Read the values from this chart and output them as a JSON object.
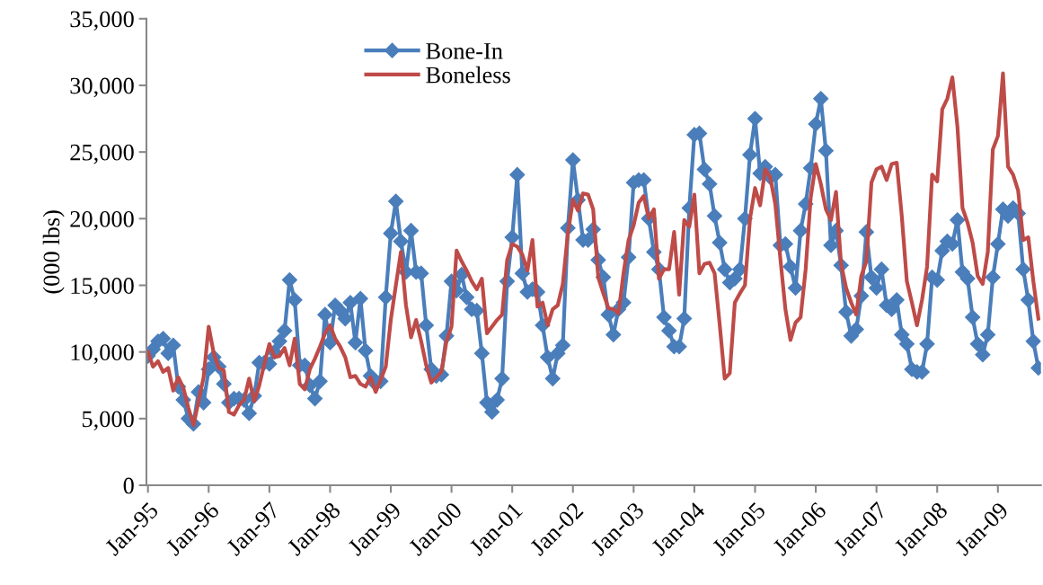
{
  "chart_data": {
    "type": "line",
    "ylabel": "(000 lbs)",
    "categories": [
      "Jan-95",
      null,
      null,
      null,
      null,
      null,
      null,
      null,
      null,
      null,
      null,
      null,
      "Jan-96",
      null,
      null,
      null,
      null,
      null,
      null,
      null,
      null,
      null,
      null,
      null,
      "Jan-97",
      null,
      null,
      null,
      null,
      null,
      null,
      null,
      null,
      null,
      null,
      null,
      "Jan-98",
      null,
      null,
      null,
      null,
      null,
      null,
      null,
      null,
      null,
      null,
      null,
      "Jan-99",
      null,
      null,
      null,
      null,
      null,
      null,
      null,
      null,
      null,
      null,
      null,
      "Jan-00",
      null,
      null,
      null,
      null,
      null,
      null,
      null,
      null,
      null,
      null,
      null,
      "Jan-01",
      null,
      null,
      null,
      null,
      null,
      null,
      null,
      null,
      null,
      null,
      null,
      "Jan-02",
      null,
      null,
      null,
      null,
      null,
      null,
      null,
      null,
      null,
      null,
      null,
      "Jan-03",
      null,
      null,
      null,
      null,
      null,
      null,
      null,
      null,
      null,
      null,
      null,
      "Jan-04",
      null,
      null,
      null,
      null,
      null,
      null,
      null,
      null,
      null,
      null,
      null,
      "Jan-05",
      null,
      null,
      null,
      null,
      null,
      null,
      null,
      null,
      null,
      null,
      null,
      "Jan-06",
      null,
      null,
      null,
      null,
      null,
      null,
      null,
      null,
      null,
      null,
      null,
      "Jan-07",
      null,
      null,
      null,
      null,
      null,
      null,
      null,
      null,
      null,
      null,
      null,
      "Jan-08",
      null,
      null,
      null,
      null,
      null,
      null,
      null,
      null,
      null,
      null,
      null,
      "Jan-09",
      null,
      null,
      null,
      null,
      null,
      null,
      null,
      null
    ],
    "series": [
      {
        "name": "Bone-In",
        "color": "#4a7ebb",
        "marker": "diamond",
        "values": [
          9700,
          10200,
          10800,
          11000,
          9900,
          10500,
          7400,
          6400,
          5000,
          4600,
          7000,
          6200,
          8700,
          9600,
          8900,
          7600,
          6200,
          6500,
          6500,
          6400,
          5400,
          6700,
          9200,
          9200,
          9100,
          10000,
          10800,
          11600,
          15400,
          13900,
          9000,
          9000,
          7500,
          6500,
          7800,
          12800,
          10700,
          13500,
          13100,
          12500,
          13700,
          10700,
          14000,
          10100,
          8200,
          7600,
          7800,
          14100,
          18900,
          21300,
          18300,
          16000,
          19100,
          16000,
          15900,
          12000,
          8700,
          8200,
          8300,
          11200,
          15300,
          14600,
          15800,
          14100,
          13200,
          13100,
          9900,
          6200,
          5500,
          6400,
          8000,
          15300,
          18600,
          23300,
          15900,
          14500,
          14700,
          14500,
          12000,
          9600,
          8000,
          9900,
          10500,
          19300,
          24400,
          21400,
          18400,
          18400,
          19200,
          16900,
          15600,
          12800,
          11300,
          13200,
          13700,
          17100,
          22700,
          22900,
          22900,
          20000,
          17500,
          16200,
          12600,
          11600,
          10400,
          10400,
          12500,
          20800,
          26300,
          26400,
          23700,
          22600,
          20200,
          18200,
          16200,
          15200,
          15500,
          16200,
          20000,
          24800,
          27500,
          23400,
          23900,
          23100,
          23300,
          18000,
          18100,
          16400,
          14800,
          19100,
          21100,
          23800,
          27100,
          29000,
          25100,
          18000,
          19100,
          16500,
          13000,
          11200,
          11700,
          14200,
          19000,
          15600,
          14800,
          16200,
          13500,
          13200,
          13900,
          11300,
          10600,
          8700,
          8500,
          8500,
          10600,
          15600,
          15400,
          17600,
          18300,
          18100,
          19900,
          16000,
          15500,
          12600,
          10600,
          9800,
          11300,
          15600,
          18100,
          20700,
          20200,
          20800,
          20400,
          16200,
          13900,
          10800,
          8800
        ]
      },
      {
        "name": "Boneless",
        "color": "#be4b48",
        "marker": "none",
        "values": [
          10000,
          8900,
          9300,
          8500,
          8800,
          7100,
          8100,
          7300,
          5800,
          4500,
          6300,
          8100,
          11900,
          9900,
          8800,
          8600,
          5500,
          5300,
          6000,
          6400,
          8000,
          6300,
          7500,
          9100,
          10600,
          9600,
          9700,
          10300,
          9000,
          11000,
          7600,
          7200,
          8700,
          9500,
          10400,
          11400,
          12000,
          11000,
          10400,
          9600,
          8100,
          8200,
          7600,
          7400,
          8100,
          7000,
          7900,
          8900,
          12400,
          15000,
          17500,
          13500,
          11100,
          12400,
          10800,
          9000,
          7700,
          8100,
          8500,
          10800,
          11900,
          17600,
          16800,
          16100,
          15300,
          14700,
          15500,
          11400,
          11900,
          12400,
          12800,
          16900,
          18100,
          17900,
          17300,
          16100,
          18400,
          13400,
          13700,
          12000,
          13200,
          13500,
          15100,
          18900,
          21400,
          20600,
          21900,
          21800,
          20700,
          15600,
          14400,
          13300,
          13200,
          12900,
          15900,
          18400,
          19500,
          21200,
          21700,
          20000,
          20700,
          15500,
          16200,
          16200,
          19000,
          14300,
          19900,
          19400,
          21800,
          15900,
          16600,
          16700,
          15900,
          12100,
          8000,
          8400,
          13700,
          14400,
          15000,
          20000,
          22300,
          21000,
          23700,
          23100,
          21100,
          17000,
          13200,
          10900,
          12200,
          12600,
          16200,
          21600,
          24100,
          22600,
          20700,
          19900,
          22000,
          16600,
          14800,
          13700,
          12800,
          15700,
          16800,
          22700,
          23700,
          23900,
          22900,
          24100,
          24200,
          20200,
          15300,
          13700,
          12000,
          13900,
          16400,
          23300,
          22800,
          28200,
          29000,
          30600,
          26900,
          20800,
          19700,
          18200,
          15700,
          15100,
          17500,
          25200,
          26200,
          30900,
          23900,
          23300,
          22100,
          18400,
          18600,
          15300,
          12500
        ]
      }
    ],
    "ylim": [
      0,
      35000
    ],
    "yticks": [
      0,
      {
        "value": 5000,
        "label": "5,000"
      },
      {
        "value": 10000,
        "label": "10,000"
      },
      {
        "value": 15000,
        "label": "15,000"
      },
      {
        "value": 20000,
        "label": "20,000"
      },
      {
        "value": 25000,
        "label": "25,000"
      },
      {
        "value": 30000,
        "label": "30,000"
      },
      {
        "value": 35000,
        "label": "35,000"
      }
    ],
    "grid": false,
    "legend": "top left",
    "line_style": "solid"
  }
}
